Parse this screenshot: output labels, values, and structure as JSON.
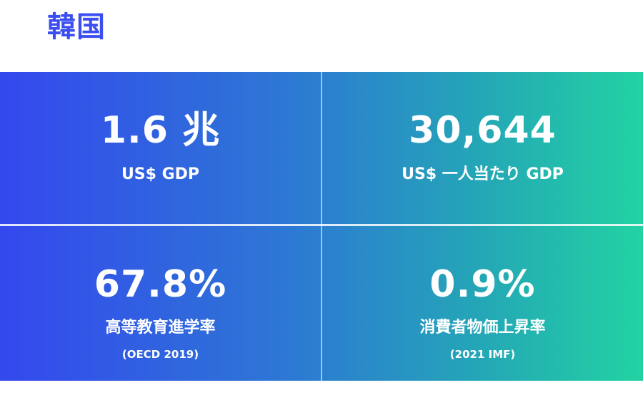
{
  "header": {
    "title": "韓国"
  },
  "colors": {
    "title": "#3b4ef0",
    "gradient_start": "#3448ee",
    "gradient_end": "#22d3a2",
    "text": "#ffffff"
  },
  "stats": [
    {
      "value": "1.6 兆",
      "label": "US$ GDP"
    },
    {
      "value": "30,644",
      "label": "US$ 一人当たり GDP"
    },
    {
      "value": "67.8%",
      "label": "高等教育進学率",
      "note": "(OECD 2019)"
    },
    {
      "value": "0.9%",
      "label": "消費者物価上昇率",
      "note": "(2021 IMF)"
    }
  ]
}
